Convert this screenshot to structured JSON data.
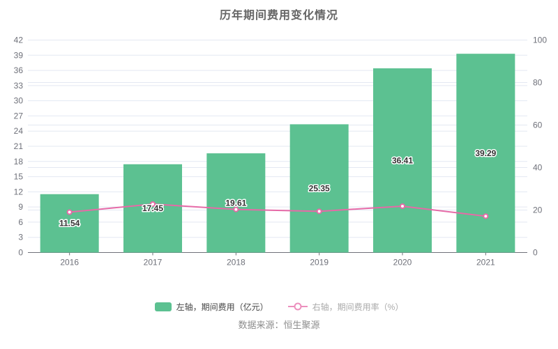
{
  "title": "历年期间费用变化情况",
  "source": "数据来源：恒生聚源",
  "legend": {
    "bar": {
      "label": "左轴，期间费用（亿元）"
    },
    "line": {
      "label": "右轴，期间费用率（%）"
    }
  },
  "colors": {
    "bar": "#5cc191",
    "line": "#e66aa7",
    "grid": "#e3e8f2",
    "axis": "#6e7079",
    "axis_label": "#6e7079",
    "bar_label": "#333333"
  },
  "chart_data": {
    "type": "bar+line",
    "title": "历年期间费用变化情况",
    "categories": [
      "2016",
      "2017",
      "2018",
      "2019",
      "2020",
      "2021"
    ],
    "series": [
      {
        "name": "左轴，期间费用（亿元）",
        "type": "bar",
        "axis": "left",
        "values": [
          11.54,
          17.45,
          19.61,
          25.35,
          36.41,
          39.29
        ],
        "data_labels": [
          "11.54",
          "17.45",
          "19.61",
          "25.35",
          "36.41",
          "39.29"
        ]
      },
      {
        "name": "右轴，期间费用率（%）",
        "type": "line",
        "axis": "right",
        "values": [
          19.0,
          22.8,
          20.3,
          19.4,
          21.8,
          17.1
        ]
      }
    ],
    "left_axis": {
      "min": 0,
      "max": 42,
      "interval": 3,
      "ticks": [
        0,
        3,
        6,
        9,
        12,
        15,
        18,
        21,
        24,
        27,
        30,
        33,
        36,
        39,
        42
      ]
    },
    "right_axis": {
      "min": 0,
      "max": 100,
      "interval": 20,
      "ticks": [
        0,
        20,
        40,
        60,
        80,
        100
      ]
    },
    "grid": true,
    "legend_position": "bottom"
  }
}
